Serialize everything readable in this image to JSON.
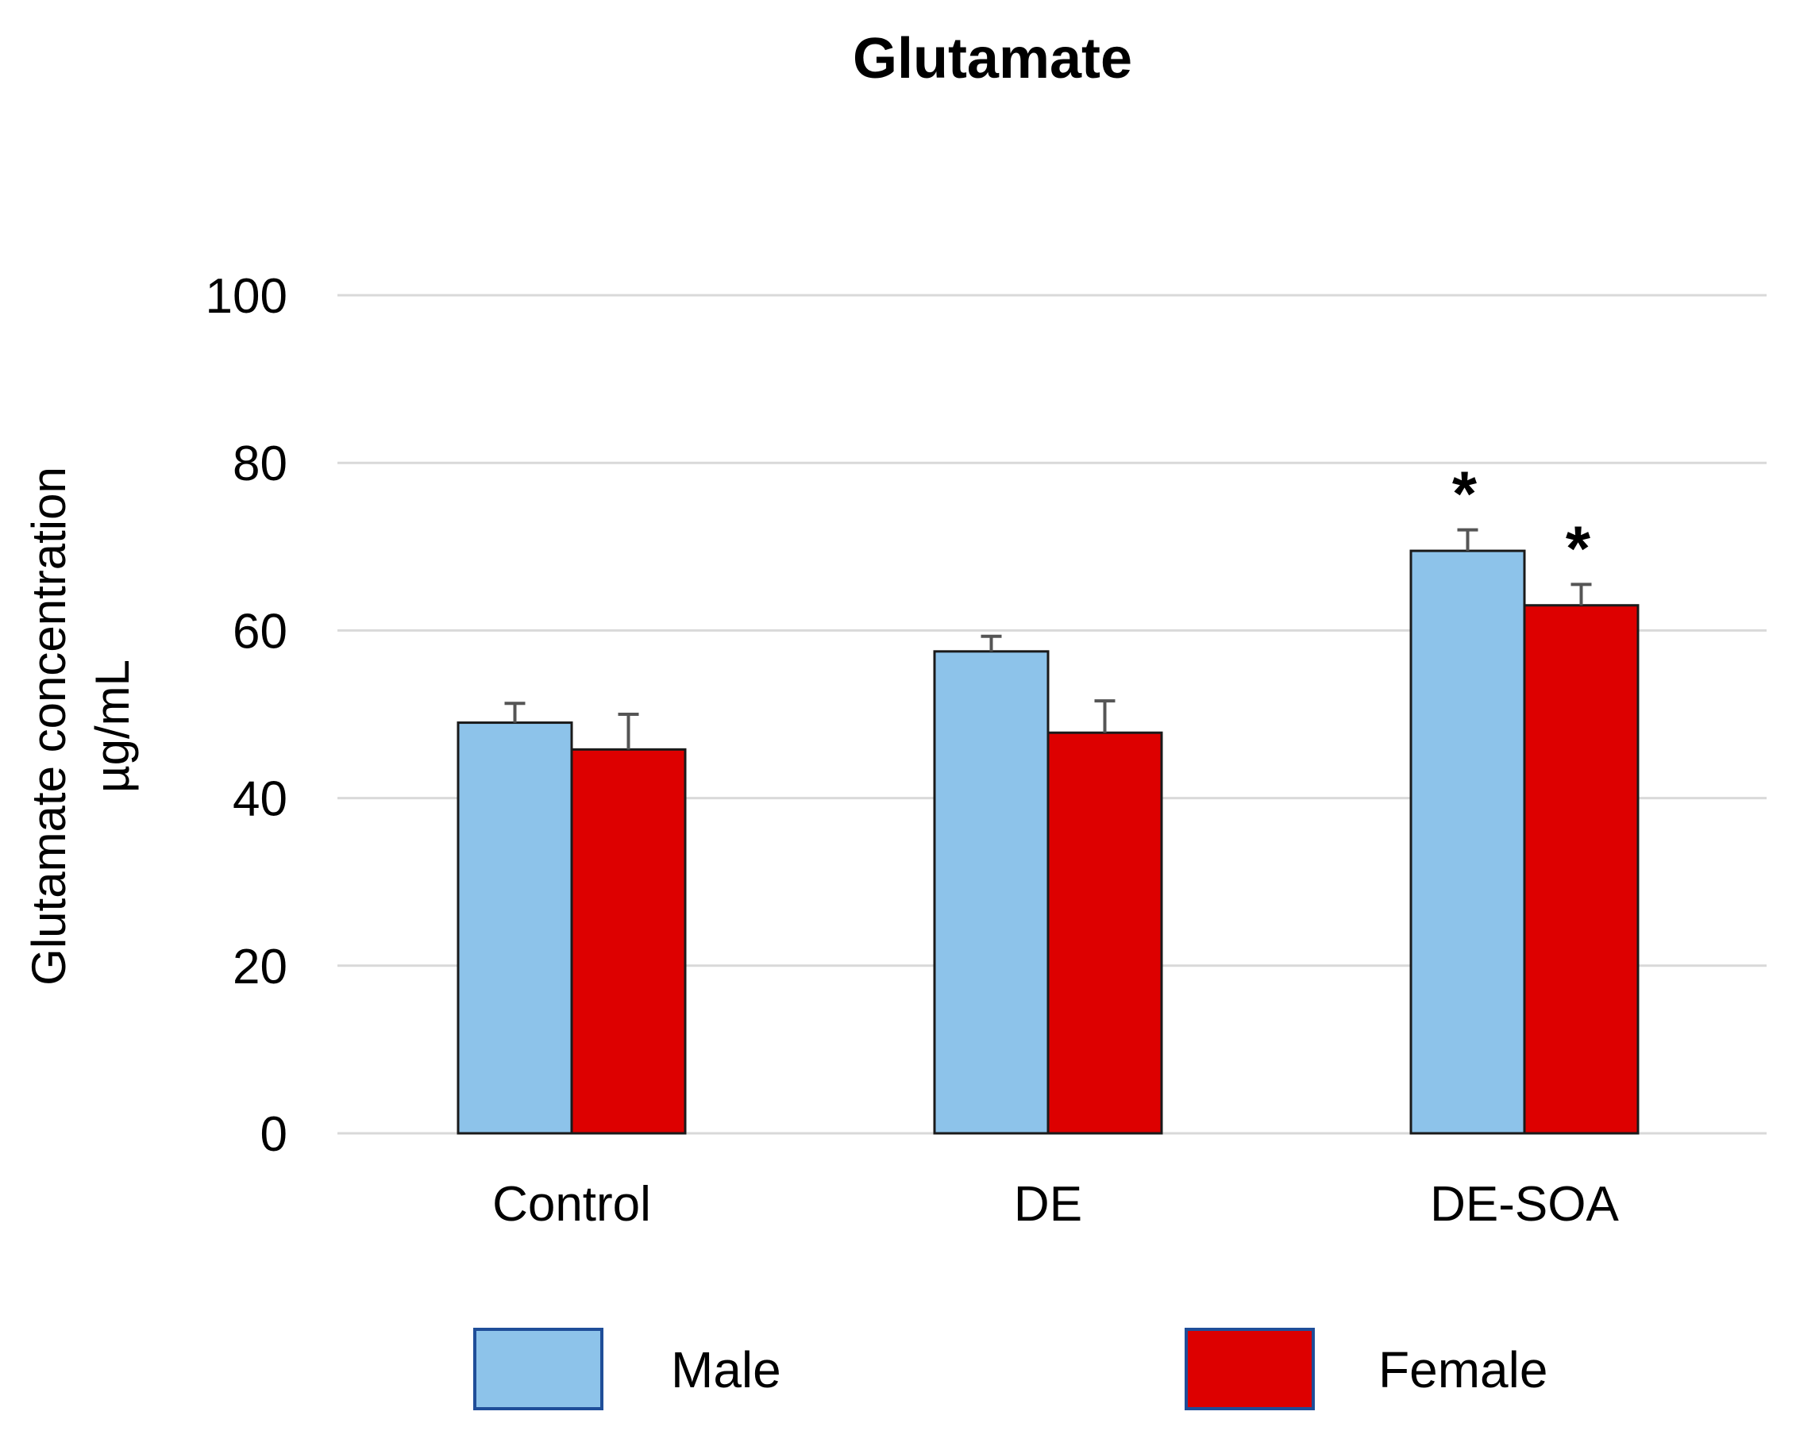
{
  "chart_data": {
    "type": "bar",
    "title": "Glutamate",
    "ylabel": [
      "Glutamate concentration",
      "µg/mL"
    ],
    "xlabel": "",
    "ylim": [
      0,
      100
    ],
    "yticks": [
      0,
      20,
      40,
      60,
      80,
      100
    ],
    "grid": true,
    "categories": [
      "Control",
      "DE",
      "DE-SOA"
    ],
    "series": [
      {
        "name": "Male",
        "color": "#8DC3EA",
        "values": [
          49,
          57.5,
          69.5
        ],
        "errors": [
          2.3,
          1.8,
          2.5
        ]
      },
      {
        "name": "Female",
        "color": "#DD0000",
        "values": [
          45.8,
          47.8,
          63
        ],
        "errors": [
          4.2,
          3.8,
          2.5
        ]
      }
    ],
    "annotations": [
      {
        "text": "*",
        "category": 2,
        "series": 0
      },
      {
        "text": "*",
        "category": 2,
        "series": 1
      }
    ],
    "legend_position": "bottom"
  }
}
